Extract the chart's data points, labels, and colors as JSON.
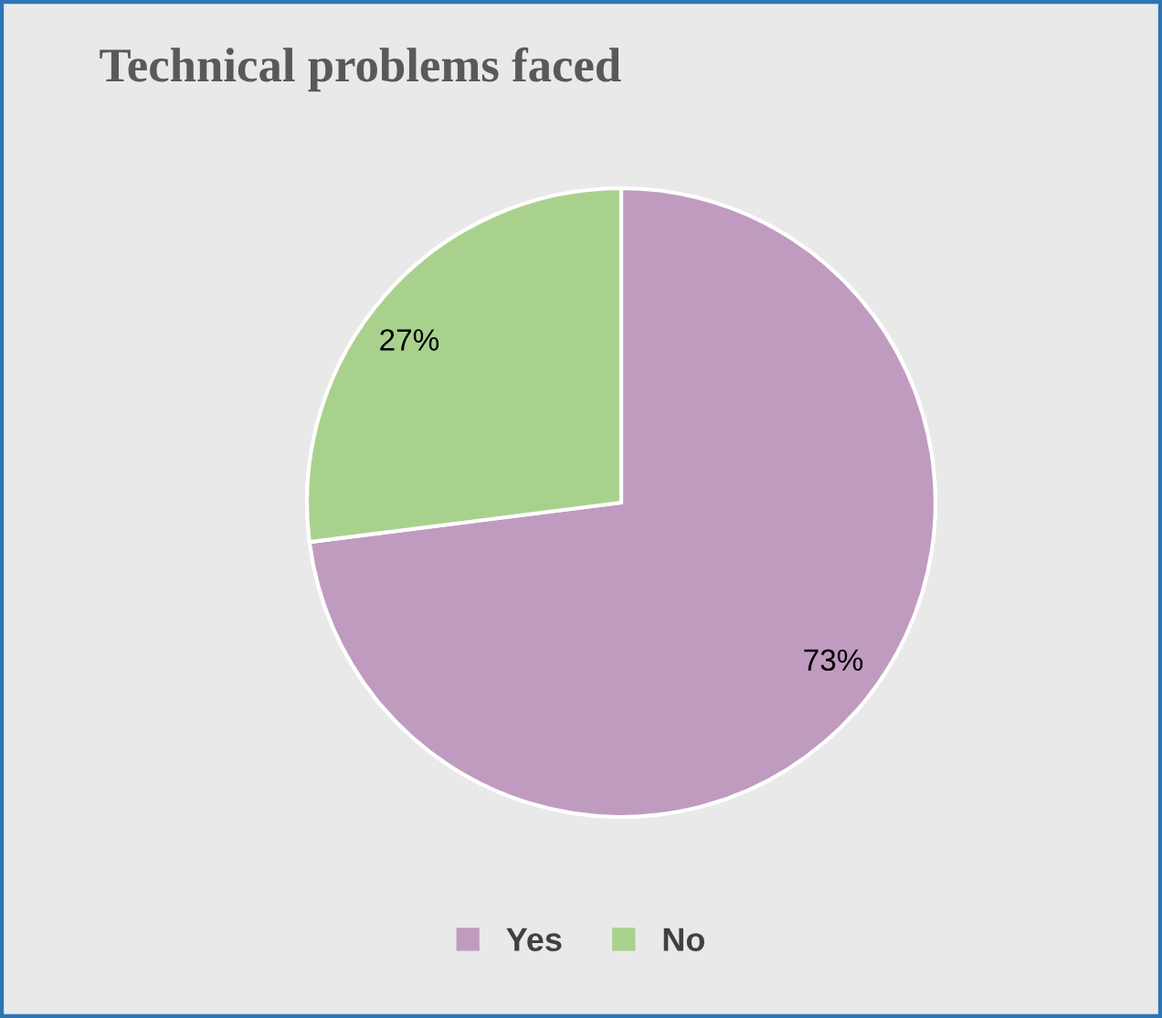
{
  "chart_data": {
    "type": "pie",
    "title": "Technical problems faced",
    "categories": [
      "Yes",
      "No"
    ],
    "values": [
      73,
      27
    ],
    "value_labels": [
      "73%",
      "27%"
    ],
    "colors": [
      "#c09bc0",
      "#a9d18e"
    ],
    "legend": "bottom"
  }
}
